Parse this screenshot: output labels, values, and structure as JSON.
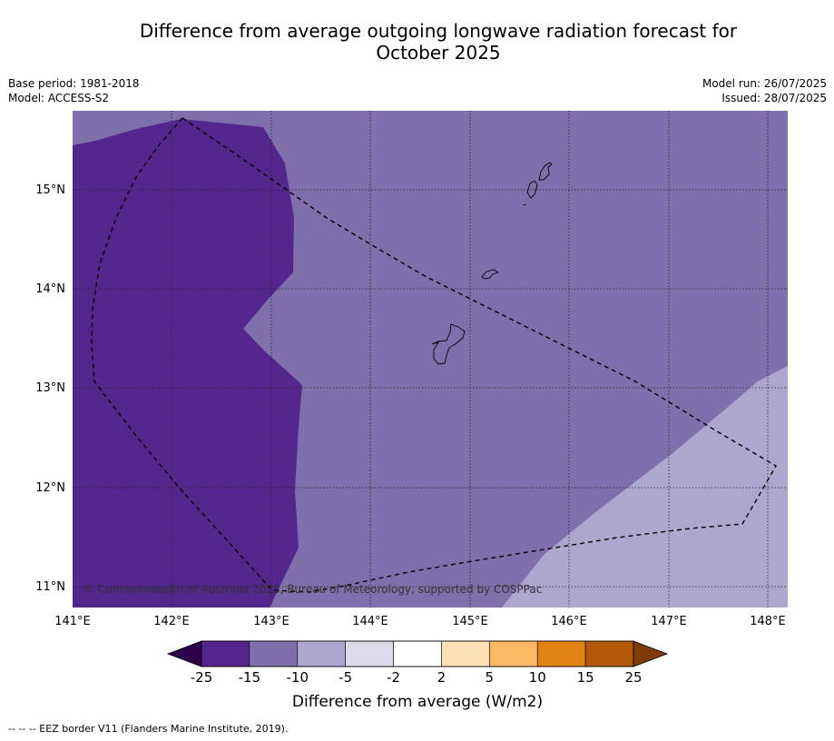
{
  "title_line1": "Difference from average outgoing longwave radiation forecast for",
  "title_line2": "October 2025",
  "meta_left": {
    "base_period": "Base period: 1981-2018",
    "model": "Model: ACCESS-S2"
  },
  "meta_right": {
    "model_run": "Model run: 26/07/2025",
    "issued": "Issued: 28/07/2025"
  },
  "map": {
    "lon_ticks": [
      "141°E",
      "142°E",
      "143°E",
      "144°E",
      "145°E",
      "146°E",
      "147°E",
      "148°E"
    ],
    "lat_ticks": [
      "15°N",
      "14°N",
      "13°N",
      "12°N",
      "11°N"
    ],
    "credit": "© Commonwealth of Australia 2025, Bureau of Meteorology, supported by COSPPac",
    "gridlines": true,
    "colors": {
      "bin_-25_-15": "#54278f",
      "bin_-15_-10": "#7f70ab",
      "bin_-10_-5": "#ada7cf",
      "eez_border": "#000000",
      "coastline": "#000000"
    }
  },
  "colorbar": {
    "tick_labels": [
      "-25",
      "-15",
      "-10",
      "-5",
      "-2",
      "2",
      "5",
      "10",
      "15",
      "25"
    ],
    "colors": [
      "#54278f",
      "#7f70ab",
      "#ada7cf",
      "#dadaeb",
      "#ffffff",
      "#fee0b6",
      "#fdb863",
      "#e08214",
      "#b35806"
    ],
    "extend_low_color": "#2d004b",
    "extend_high_color": "#7f3b08",
    "title": "Difference from average (W/m2)"
  },
  "footnote": "--  --  -- EEZ border V11 (Flanders Marine Institute, 2019)."
}
